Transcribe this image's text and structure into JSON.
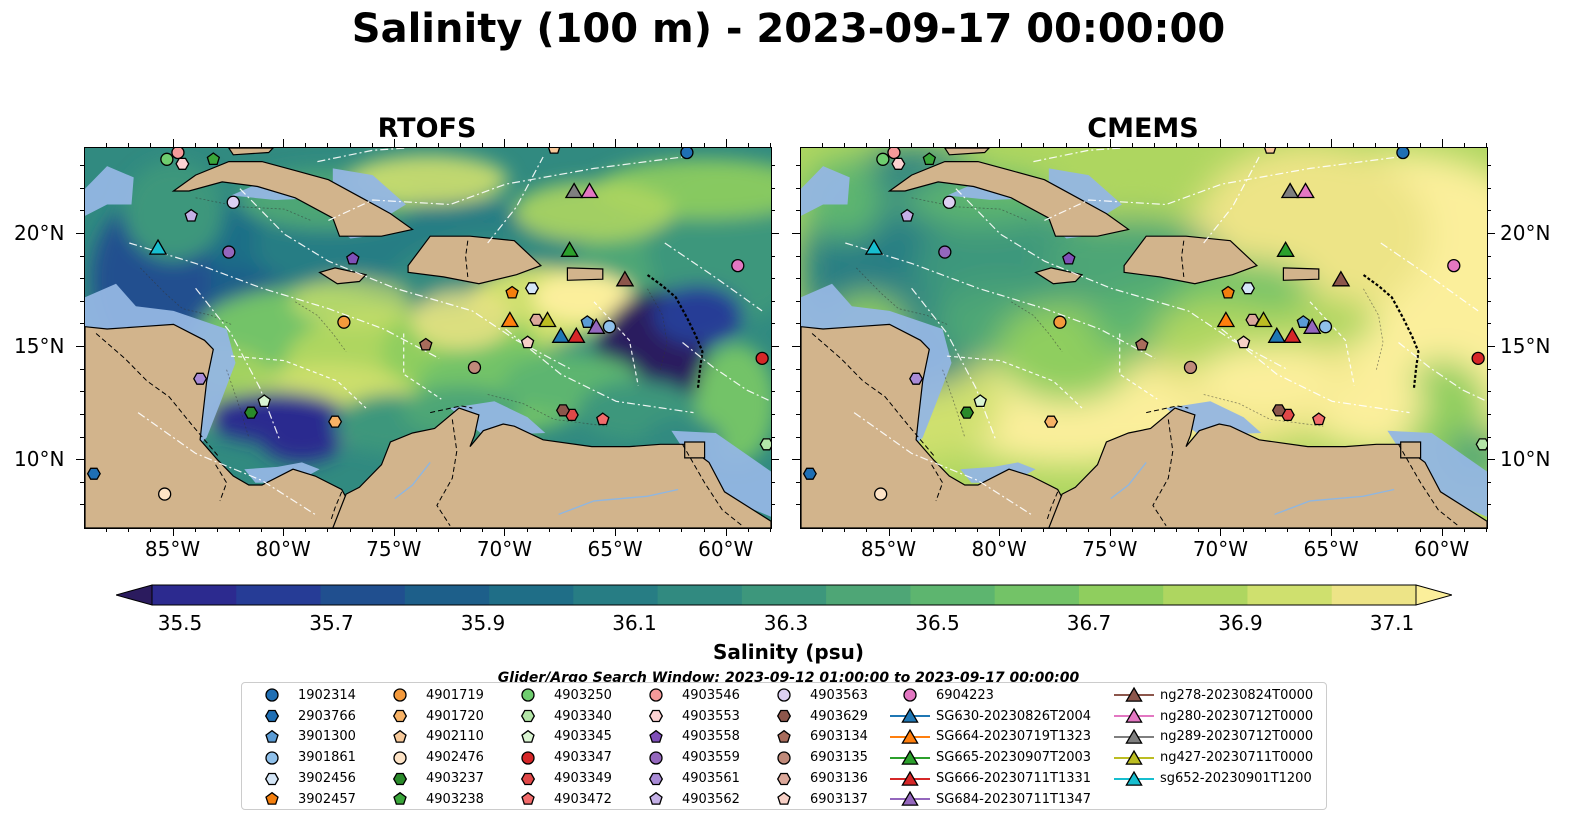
{
  "title": "Salinity (100 m) - 2023-09-17 00:00:00",
  "panels": [
    {
      "id": "rtofs",
      "title": "RTOFS"
    },
    {
      "id": "cmems",
      "title": "CMEMS"
    }
  ],
  "axes": {
    "lon_ticks": [
      "85°W",
      "80°W",
      "75°W",
      "70°W",
      "65°W",
      "60°W"
    ],
    "lat_ticks": [
      "20°N",
      "15°N",
      "10°N"
    ]
  },
  "colorbar": {
    "label": "Salinity (psu)",
    "tick_labels": [
      "35.5",
      "35.7",
      "35.9",
      "36.1",
      "36.3",
      "36.5",
      "36.7",
      "36.9",
      "37.1"
    ],
    "colors": [
      "#2b1b5e",
      "#2c2a8f",
      "#263c96",
      "#204f8f",
      "#1d5f8a",
      "#1f6e87",
      "#277d84",
      "#318a80",
      "#3d977c",
      "#4ea676",
      "#5db56f",
      "#73c367",
      "#8fce5e",
      "#aed660",
      "#cfe06e",
      "#ede487",
      "#fbef9b"
    ]
  },
  "search_window": "Glider/Argo Search Window: 2023-09-12 01:00:00 to 2023-09-17 00:00:00",
  "colors": {
    "land": "#d2b48c",
    "shelf": "#93b6e3",
    "deep_low": "#2b1b5e",
    "track": "#ffffff"
  },
  "legend": [
    {
      "label": "1902314",
      "marker": "circle",
      "color": "#1f6fb4"
    },
    {
      "label": "2903766",
      "marker": "hexagon",
      "color": "#1f6fb4"
    },
    {
      "label": "3901300",
      "marker": "pentagon",
      "color": "#5a9bd4"
    },
    {
      "label": "3901861",
      "marker": "circle",
      "color": "#8fc0ea"
    },
    {
      "label": "3902456",
      "marker": "hexagon",
      "color": "#d4e6f7"
    },
    {
      "label": "3902457",
      "marker": "pentagon",
      "color": "#f47f0e"
    },
    {
      "label": "4901719",
      "marker": "circle",
      "color": "#f49a3c"
    },
    {
      "label": "4901720",
      "marker": "hexagon",
      "color": "#f7b266"
    },
    {
      "label": "4902110",
      "marker": "pentagon",
      "color": "#f7c99a"
    },
    {
      "label": "4902476",
      "marker": "circle",
      "color": "#fde3c6"
    },
    {
      "label": "4903237",
      "marker": "hexagon",
      "color": "#2a8a2a"
    },
    {
      "label": "4903238",
      "marker": "pentagon",
      "color": "#3aa63a"
    },
    {
      "label": "4903250",
      "marker": "circle",
      "color": "#6fcd6f"
    },
    {
      "label": "4903340",
      "marker": "hexagon",
      "color": "#b4e6a8"
    },
    {
      "label": "4903345",
      "marker": "pentagon",
      "color": "#daf5d2"
    },
    {
      "label": "4903347",
      "marker": "circle",
      "color": "#d62728"
    },
    {
      "label": "4903349",
      "marker": "hexagon",
      "color": "#e04848"
    },
    {
      "label": "4903472",
      "marker": "pentagon",
      "color": "#f26b6b"
    },
    {
      "label": "4903546",
      "marker": "circle",
      "color": "#f59a9a"
    },
    {
      "label": "4903553",
      "marker": "hexagon",
      "color": "#fcd2d2"
    },
    {
      "label": "4903558",
      "marker": "pentagon",
      "color": "#7f4fb8"
    },
    {
      "label": "4903559",
      "marker": "circle",
      "color": "#9467bd"
    },
    {
      "label": "4903561",
      "marker": "hexagon",
      "color": "#a98bd6"
    },
    {
      "label": "4903562",
      "marker": "pentagon",
      "color": "#c4b0e6"
    },
    {
      "label": "4903563",
      "marker": "circle",
      "color": "#ddd0f2"
    },
    {
      "label": "4903629",
      "marker": "hexagon",
      "color": "#8c564b"
    },
    {
      "label": "6903134",
      "marker": "pentagon",
      "color": "#a86c5c"
    },
    {
      "label": "6903135",
      "marker": "circle",
      "color": "#c08a7a"
    },
    {
      "label": "6903136",
      "marker": "hexagon",
      "color": "#dba89a"
    },
    {
      "label": "6903137",
      "marker": "pentagon",
      "color": "#f7d0c6"
    },
    {
      "label": "6904223",
      "marker": "circle",
      "color": "#e377c2"
    },
    {
      "label": "SG630-20230826T2004",
      "marker": "triangle",
      "color": "#1f77b4"
    },
    {
      "label": "SG664-20230719T1323",
      "marker": "triangle",
      "color": "#ff7f0e"
    },
    {
      "label": "SG665-20230907T2003",
      "marker": "triangle",
      "color": "#2ca02c"
    },
    {
      "label": "SG666-20230711T1331",
      "marker": "triangle",
      "color": "#d62728"
    },
    {
      "label": "SG684-20230711T1347",
      "marker": "triangle",
      "color": "#9467bd"
    },
    {
      "label": "ng278-20230824T0000",
      "marker": "triangle",
      "color": "#8c564b"
    },
    {
      "label": "ng280-20230712T0000",
      "marker": "triangle",
      "color": "#e377c2"
    },
    {
      "label": "ng289-20230712T0000",
      "marker": "triangle",
      "color": "#7f7f7f"
    },
    {
      "label": "ng427-20230711T0000",
      "marker": "triangle",
      "color": "#bcbd22"
    },
    {
      "label": "sg652-20230901T1200",
      "marker": "triangle",
      "color": "#17becf"
    }
  ],
  "markers": [
    {
      "id": "1902314",
      "lon": -61.8,
      "lat": 23.6
    },
    {
      "id": "2903766",
      "lon": -88.6,
      "lat": 9.4
    },
    {
      "id": "3901300",
      "lon": -66.3,
      "lat": 16.1
    },
    {
      "id": "3901861",
      "lon": -65.3,
      "lat": 15.9
    },
    {
      "id": "3902456",
      "lon": -68.8,
      "lat": 17.6
    },
    {
      "id": "3902457",
      "lon": -69.7,
      "lat": 17.4
    },
    {
      "id": "4901719",
      "lon": -77.3,
      "lat": 16.1
    },
    {
      "id": "4901720",
      "lon": -77.7,
      "lat": 11.7
    },
    {
      "id": "4902110",
      "lon": -67.8,
      "lat": 23.8
    },
    {
      "id": "4902476",
      "lon": -85.4,
      "lat": 8.5
    },
    {
      "id": "4903237",
      "lon": -81.5,
      "lat": 12.1
    },
    {
      "id": "4903238",
      "lon": -83.2,
      "lat": 23.3
    },
    {
      "id": "4903250",
      "lon": -85.3,
      "lat": 23.3
    },
    {
      "id": "4903340",
      "lon": -58.2,
      "lat": 10.7
    },
    {
      "id": "4903345",
      "lon": -80.9,
      "lat": 12.6
    },
    {
      "id": "4903347",
      "lon": -58.4,
      "lat": 14.5
    },
    {
      "id": "4903349",
      "lon": -67.0,
      "lat": 12.0
    },
    {
      "id": "4903472",
      "lon": -65.6,
      "lat": 11.8
    },
    {
      "id": "4903546",
      "lon": -84.8,
      "lat": 23.6
    },
    {
      "id": "4903553",
      "lon": -84.6,
      "lat": 23.1
    },
    {
      "id": "4903558",
      "lon": -76.9,
      "lat": 18.9
    },
    {
      "id": "4903559",
      "lon": -82.5,
      "lat": 19.2
    },
    {
      "id": "4903561",
      "lon": -83.8,
      "lat": 13.6
    },
    {
      "id": "4903562",
      "lon": -84.2,
      "lat": 20.8
    },
    {
      "id": "4903563",
      "lon": -82.3,
      "lat": 21.4
    },
    {
      "id": "4903629",
      "lon": -67.4,
      "lat": 12.2
    },
    {
      "id": "6903134",
      "lon": -73.6,
      "lat": 15.1
    },
    {
      "id": "6903135",
      "lon": -71.4,
      "lat": 14.1
    },
    {
      "id": "6903136",
      "lon": -68.6,
      "lat": 16.2
    },
    {
      "id": "6903137",
      "lon": -69.0,
      "lat": 15.2
    },
    {
      "id": "6904223",
      "lon": -59.5,
      "lat": 18.6
    },
    {
      "id": "SG630-20230826T2004",
      "lon": -67.5,
      "lat": 15.5
    },
    {
      "id": "SG664-20230719T1323",
      "lon": -69.8,
      "lat": 16.2
    },
    {
      "id": "SG665-20230907T2003",
      "lon": -67.1,
      "lat": 19.3
    },
    {
      "id": "SG666-20230711T1331",
      "lon": -66.8,
      "lat": 15.5
    },
    {
      "id": "SG684-20230711T1347",
      "lon": -65.9,
      "lat": 15.9
    },
    {
      "id": "ng278-20230824T0000",
      "lon": -64.6,
      "lat": 18.0
    },
    {
      "id": "ng280-20230712T0000",
      "lon": -66.2,
      "lat": 21.9
    },
    {
      "id": "ng289-20230712T0000",
      "lon": -66.9,
      "lat": 21.9
    },
    {
      "id": "ng427-20230711T0000",
      "lon": -68.1,
      "lat": 16.2
    },
    {
      "id": "sg652-20230901T1200",
      "lon": -85.7,
      "lat": 19.4
    }
  ]
}
